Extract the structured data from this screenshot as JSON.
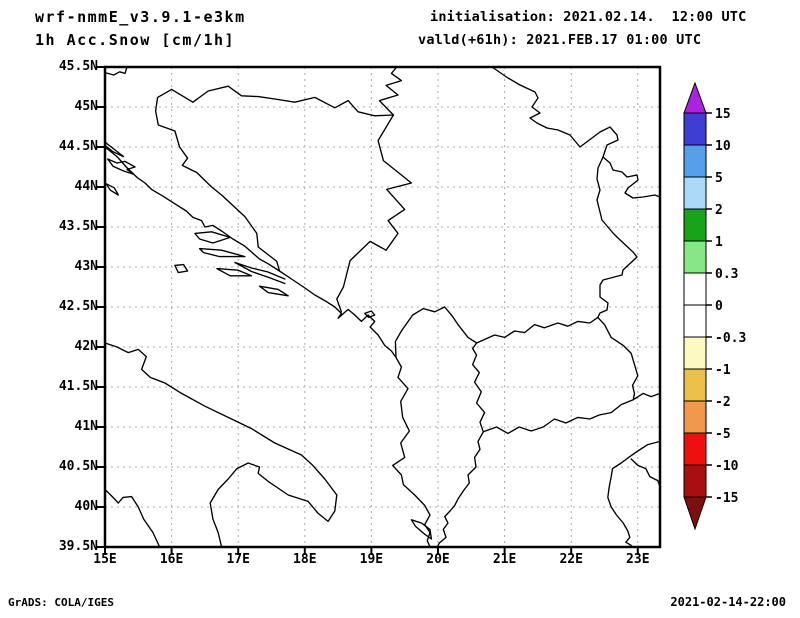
{
  "header": {
    "model_title": "wrf-nmmE_v3.9.1-e3km",
    "variable_title": "1h Acc.Snow [cm/1h]",
    "initialisation": "initialisation: 2021.02.14.  12:00 UTC",
    "valid": "valld(+61h): 2021.FEB.17 01:00 UTC"
  },
  "axes": {
    "lat_labels": [
      "45.5N",
      "45N",
      "44.5N",
      "44N",
      "43.5N",
      "43N",
      "42.5N",
      "42N",
      "41.5N",
      "41N",
      "40.5N",
      "40N",
      "39.5N"
    ],
    "lon_labels": [
      "15E",
      "16E",
      "17E",
      "18E",
      "19E",
      "20E",
      "21E",
      "22E",
      "23E"
    ],
    "lat_range": [
      39.5,
      45.5
    ],
    "lon_range": [
      15.0,
      23.33
    ]
  },
  "colorbar": {
    "unit": "cm/1h",
    "levels": [
      "15",
      "10",
      "5",
      "2",
      "1",
      "0.3",
      "0",
      "-0.3",
      "-1",
      "-2",
      "-5",
      "-10",
      "-15"
    ],
    "segment_colors": [
      "#3e3ed4",
      "#55a0e8",
      "#aadaf5",
      "#17a217",
      "#85e885",
      "#ffffff",
      "#ffffff",
      "#fdfac1",
      "#ecc14b",
      "#f0994c",
      "#ee0f0f",
      "#aa0f0f"
    ],
    "top_arrow_color": "#aa22e2",
    "bottom_arrow_color": "#7c0f0f",
    "outline_color": "#000000"
  },
  "footer": {
    "left": "GrADS: COLA/IGES",
    "right": "2021-02-14-22:00"
  }
}
